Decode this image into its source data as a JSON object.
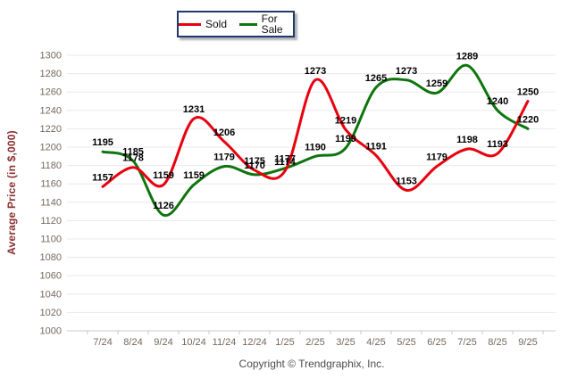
{
  "legend": {
    "items": [
      {
        "label": "Sold",
        "color": "#e8000f"
      },
      {
        "label": "For Sale",
        "color": "#0e750e"
      }
    ]
  },
  "chart_data": {
    "type": "line",
    "title": "",
    "xlabel": "",
    "ylabel": "Average Price (in $,000)",
    "categories": [
      "7/24",
      "8/24",
      "9/24",
      "10/24",
      "11/24",
      "12/24",
      "1/25",
      "2/25",
      "3/25",
      "4/25",
      "5/25",
      "6/25",
      "7/25",
      "8/25",
      "9/25"
    ],
    "series": [
      {
        "name": "Sold",
        "color": "#e8000f",
        "values": [
          1157,
          1178,
          1159,
          1231,
          1206,
          1175,
          1174,
          1273,
          1219,
          1191,
          1153,
          1179,
          1198,
          1193,
          1250
        ]
      },
      {
        "name": "For Sale",
        "color": "#0e750e",
        "values": [
          1195,
          1185,
          1126,
          1159,
          1179,
          1170,
          1177,
          1190,
          1199,
          1265,
          1273,
          1259,
          1289,
          1240,
          1220
        ]
      }
    ],
    "ylim": [
      1000,
      1300
    ],
    "ytick_step": 20,
    "grid": true,
    "smooth": true,
    "legend_position": "top-center",
    "data_labels": true
  },
  "theme": {
    "background": "#ffffff",
    "gridline": "#e8e8e8",
    "axis": "#c9c9c9",
    "tick_label": "#75675d",
    "axis_title": "#8b3030",
    "data_label": "#000000",
    "legend_border": "#1f3a68"
  },
  "footer": {
    "copyright": "Copyright © Trendgraphix, Inc."
  }
}
